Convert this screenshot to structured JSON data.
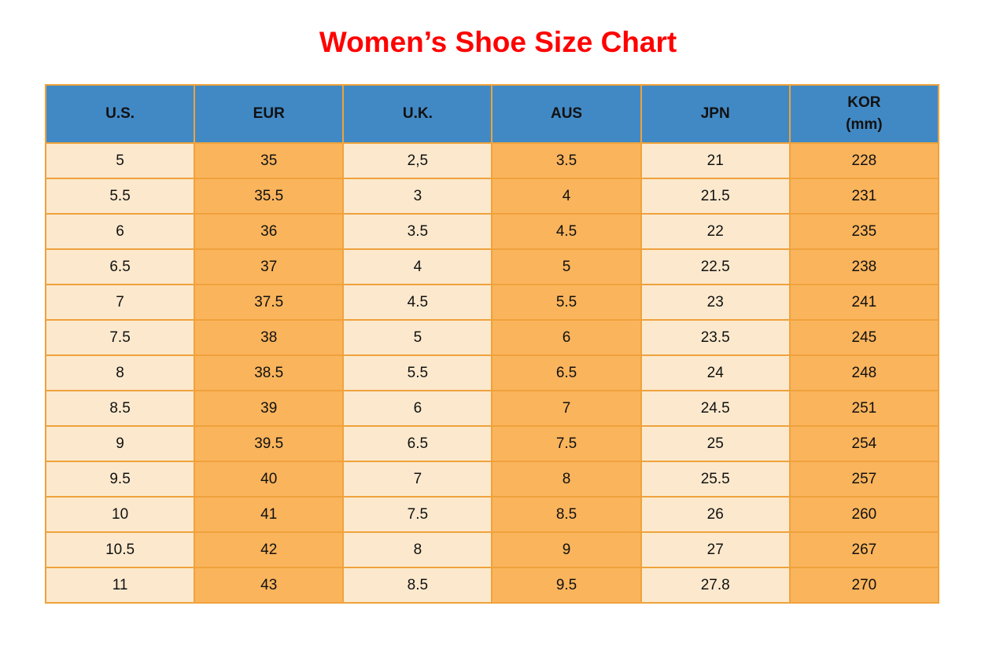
{
  "page": {
    "title": "Women’s Shoe Size Chart"
  },
  "colors": {
    "title_red": "#ff0000",
    "header_blue": "#4189c5",
    "cell_cream": "#fce9cd",
    "cell_orange": "#fab45c",
    "border_orange": "#efa23c",
    "text_black": "#111111"
  },
  "table": {
    "header": [
      {
        "label": "U.S."
      },
      {
        "label": "EUR"
      },
      {
        "label": "U.K."
      },
      {
        "label": "AUS"
      },
      {
        "label": "JPN"
      },
      {
        "label": "KOR\n(mm)"
      }
    ]
  },
  "chart_data": {
    "type": "table",
    "title": "Women’s Shoe Size Chart",
    "columns": [
      "U.S.",
      "EUR",
      "U.K.",
      "AUS",
      "JPN",
      "KOR (mm)"
    ],
    "rows": [
      [
        "5",
        "35",
        "2,5",
        "3.5",
        "21",
        "228"
      ],
      [
        "5.5",
        "35.5",
        "3",
        "4",
        "21.5",
        "231"
      ],
      [
        "6",
        "36",
        "3.5",
        "4.5",
        "22",
        "235"
      ],
      [
        "6.5",
        "37",
        "4",
        "5",
        "22.5",
        "238"
      ],
      [
        "7",
        "37.5",
        "4.5",
        "5.5",
        "23",
        "241"
      ],
      [
        "7.5",
        "38",
        "5",
        "6",
        "23.5",
        "245"
      ],
      [
        "8",
        "38.5",
        "5.5",
        "6.5",
        "24",
        "248"
      ],
      [
        "8.5",
        "39",
        "6",
        "7",
        "24.5",
        "251"
      ],
      [
        "9",
        "39.5",
        "6.5",
        "7.5",
        "25",
        "254"
      ],
      [
        "9.5",
        "40",
        "7",
        "8",
        "25.5",
        "257"
      ],
      [
        "10",
        "41",
        "7.5",
        "8.5",
        "26",
        "260"
      ],
      [
        "10.5",
        "42",
        "8",
        "9",
        "27",
        "267"
      ],
      [
        "11",
        "43",
        "8.5",
        "9.5",
        "27.8",
        "270"
      ]
    ],
    "layout": {
      "column_shading_alternates": true,
      "header_background": "#4189c5",
      "grid": true
    }
  }
}
